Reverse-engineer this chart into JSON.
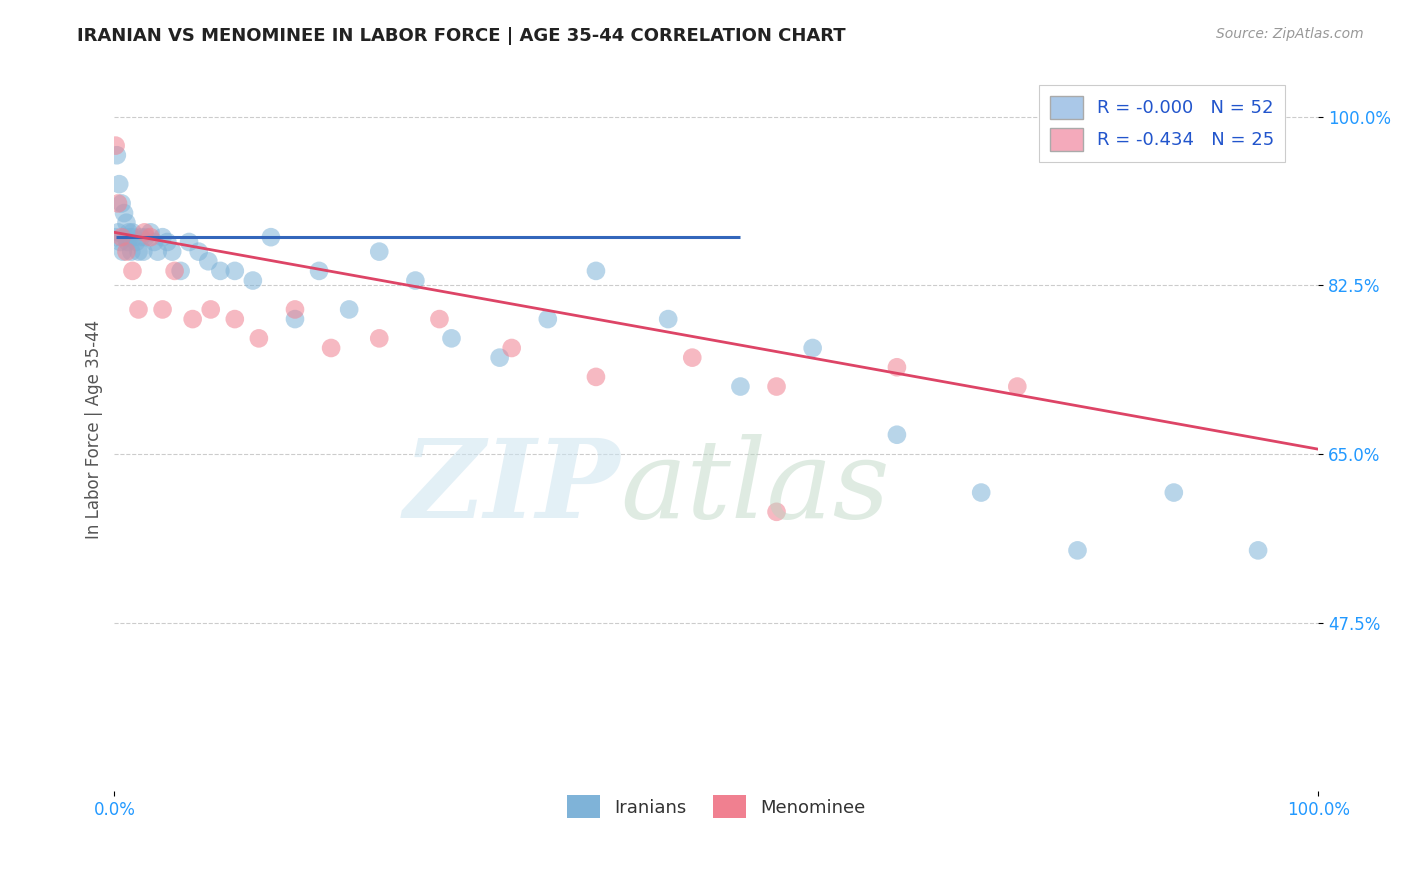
{
  "title": "IRANIAN VS MENOMINEE IN LABOR FORCE | AGE 35-44 CORRELATION CHART",
  "source_text": "Source: ZipAtlas.com",
  "ylabel": "In Labor Force | Age 35-44",
  "ytick_labels": [
    "47.5%",
    "65.0%",
    "82.5%",
    "100.0%"
  ],
  "ytick_values": [
    0.475,
    0.65,
    0.825,
    1.0
  ],
  "xrange": [
    0.0,
    1.0
  ],
  "yrange": [
    0.3,
    1.05
  ],
  "legend_iranians": "Iranians",
  "legend_menominee": "Menominee",
  "iranian_color": "#7fb3d8",
  "menominee_color": "#f08090",
  "iranian_line_color": "#3366bb",
  "menominee_line_color": "#dd4466",
  "legend_box_color1": "#aac8e8",
  "legend_box_color2": "#f4aabb",
  "legend_text_color": "#2255cc",
  "axis_tick_color": "#2299ff",
  "iranians_x": [
    0.001,
    0.002,
    0.003,
    0.004,
    0.005,
    0.006,
    0.007,
    0.008,
    0.009,
    0.01,
    0.011,
    0.012,
    0.013,
    0.014,
    0.015,
    0.016,
    0.018,
    0.02,
    0.022,
    0.024,
    0.026,
    0.03,
    0.033,
    0.036,
    0.04,
    0.044,
    0.048,
    0.055,
    0.062,
    0.07,
    0.078,
    0.088,
    0.1,
    0.115,
    0.13,
    0.15,
    0.17,
    0.195,
    0.22,
    0.25,
    0.28,
    0.32,
    0.36,
    0.4,
    0.46,
    0.52,
    0.58,
    0.65,
    0.72,
    0.8,
    0.88,
    0.95
  ],
  "iranians_y": [
    0.875,
    0.96,
    0.88,
    0.93,
    0.87,
    0.91,
    0.86,
    0.9,
    0.875,
    0.89,
    0.87,
    0.88,
    0.875,
    0.86,
    0.88,
    0.875,
    0.87,
    0.86,
    0.875,
    0.86,
    0.875,
    0.88,
    0.87,
    0.86,
    0.875,
    0.87,
    0.86,
    0.84,
    0.87,
    0.86,
    0.85,
    0.84,
    0.84,
    0.83,
    0.875,
    0.79,
    0.84,
    0.8,
    0.86,
    0.83,
    0.77,
    0.75,
    0.79,
    0.84,
    0.79,
    0.72,
    0.76,
    0.67,
    0.61,
    0.55,
    0.61,
    0.55
  ],
  "menominee_x": [
    0.001,
    0.003,
    0.006,
    0.01,
    0.015,
    0.02,
    0.025,
    0.03,
    0.04,
    0.05,
    0.065,
    0.08,
    0.1,
    0.12,
    0.15,
    0.18,
    0.22,
    0.27,
    0.33,
    0.4,
    0.48,
    0.55,
    0.65,
    0.75,
    0.55
  ],
  "menominee_y": [
    0.97,
    0.91,
    0.875,
    0.86,
    0.84,
    0.8,
    0.88,
    0.875,
    0.8,
    0.84,
    0.79,
    0.8,
    0.79,
    0.77,
    0.8,
    0.76,
    0.77,
    0.79,
    0.76,
    0.73,
    0.75,
    0.72,
    0.74,
    0.72,
    0.59
  ],
  "iranian_trendline_x": [
    0.001,
    0.52
  ],
  "iranian_trendline_y": [
    0.875,
    0.875
  ],
  "menominee_trendline_x": [
    0.0,
    1.0
  ],
  "menominee_trendline_y": [
    0.88,
    0.655
  ]
}
